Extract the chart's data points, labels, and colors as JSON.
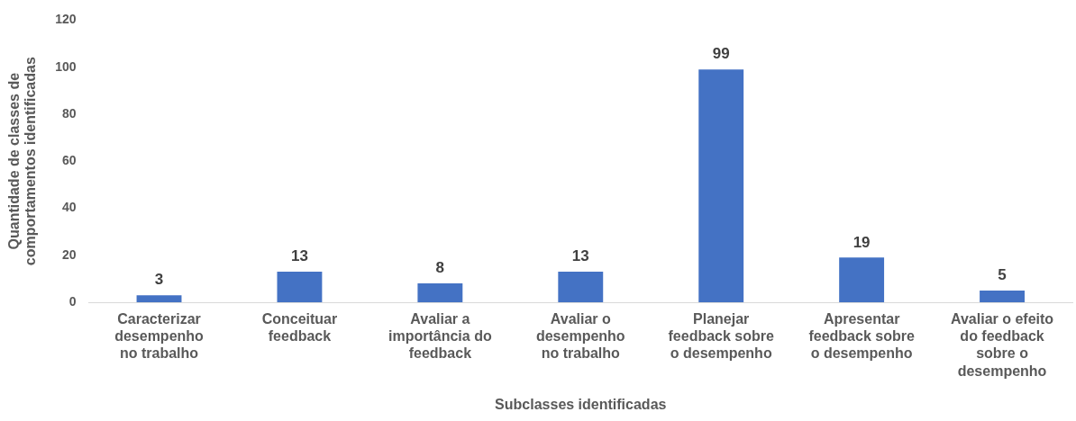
{
  "chart_data": {
    "type": "bar",
    "xlabel": "Subclasses identificadas",
    "ylabel": "Quantidade de classes de comportamentos identificadas",
    "categories": [
      "Caracterizar desempenho no trabalho",
      "Conceituar feedback",
      "Avaliar a importância do feedback",
      "Avaliar o desempenho no trabalho",
      "Planejar feedback sobre o desempenho",
      "Apresentar feedback sobre o desempenho",
      "Avaliar o efeito do feedback sobre o desempenho"
    ],
    "values": [
      3,
      13,
      8,
      13,
      99,
      19,
      5
    ],
    "color": "#4472c4",
    "ylim": [
      0,
      120
    ],
    "yticks": [
      0,
      20,
      40,
      60,
      80,
      100,
      120
    ],
    "grid": false,
    "legend": false,
    "data_labels": true
  }
}
